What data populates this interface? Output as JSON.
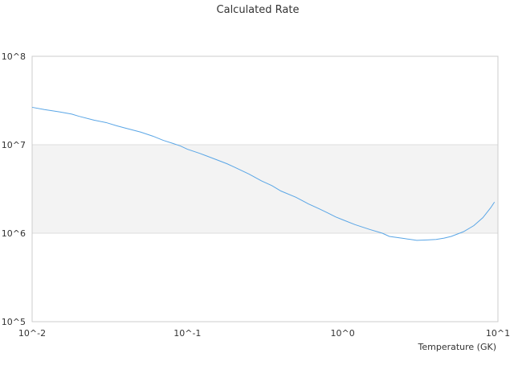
{
  "chart_data": {
    "type": "line",
    "title": "Calculated Rate",
    "xlabel": "Temperature (GK)",
    "ylabel": "",
    "x_scale": "log",
    "y_scale": "log",
    "xlim": [
      0.01,
      10
    ],
    "ylim": [
      100000,
      100000000
    ],
    "x_tick_labels": [
      "10^-2",
      "10^-1",
      "10^0",
      "10^1"
    ],
    "y_tick_labels": [
      "10^5",
      "10^6",
      "10^7",
      "10^8"
    ],
    "grid": "horizontal",
    "legend": "none",
    "colors": {
      "line": "#5aa6e6",
      "band": "#f3f3f3",
      "gridline": "#dddddd",
      "axis": "#cccccc"
    },
    "series": [
      {
        "x": [
          0.01,
          0.012,
          0.015,
          0.018,
          0.02,
          0.025,
          0.03,
          0.035,
          0.04,
          0.05,
          0.06,
          0.07,
          0.08,
          0.09,
          0.1,
          0.12,
          0.15,
          0.18,
          0.2,
          0.25,
          0.3,
          0.35,
          0.4,
          0.5,
          0.6,
          0.7,
          0.8,
          0.9,
          1.0,
          1.2,
          1.5,
          1.8,
          2.0,
          2.5,
          3.0,
          3.5,
          4.0,
          4.5,
          5.0,
          6.0,
          7.0,
          8.0,
          9.0,
          9.5
        ],
        "y": [
          26500000,
          25000000,
          23500000,
          22200000,
          21000000,
          19000000,
          17800000,
          16400000,
          15400000,
          13900000,
          12500000,
          11200000,
          10400000,
          9700000,
          8900000,
          8000000,
          6900000,
          6100000,
          5600000,
          4650000,
          3900000,
          3450000,
          3000000,
          2550000,
          2150000,
          1900000,
          1700000,
          1530000,
          1420000,
          1250000,
          1100000,
          1000000,
          920000,
          870000,
          830000,
          840000,
          850000,
          880000,
          920000,
          1040000,
          1220000,
          1500000,
          1950000,
          2250000
        ]
      }
    ]
  }
}
